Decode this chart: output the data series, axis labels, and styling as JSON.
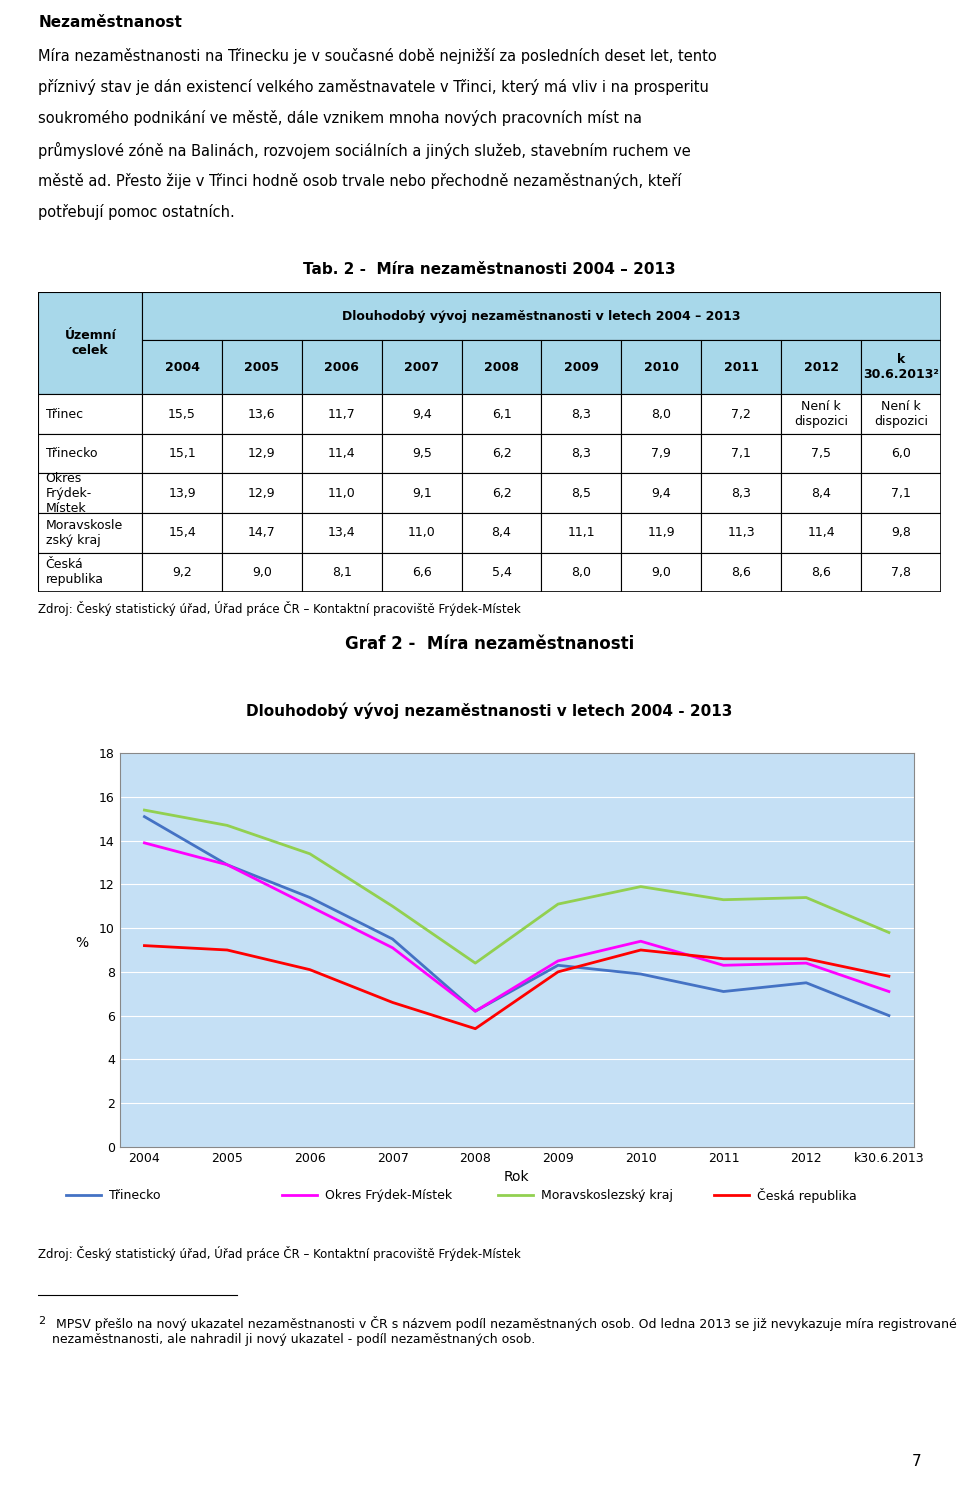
{
  "title_bold": "Nezaměstnanost",
  "paragraph": "Míra nezaměstnanosti na Třinecku je v současné době nejnižší za posledních deset let, tento příznivý stav je dán existencí velkého zaměstnavatele v Třinci, který má vliv i na prosperitu soukromého podnikání ve městě, dále vznikem mnoha nových pracovních míst na průmyslové zóně na Balinách, rozvojem sociálních a jiných služeb, stavebním ruchem ve městě ad. Přesto žije v Třinci hodně osob trvale nebo přechodně nezaměstnaných, kteří potřebují pomoc ostatních.",
  "tab_title": "Tab. 2 -  Míra nezaměstnanosti 2004 – 2013",
  "col_years": [
    "2004",
    "2005",
    "2006",
    "2007",
    "2008",
    "2009",
    "2010",
    "2011",
    "2012",
    "k\n30.6.2013²"
  ],
  "rows": [
    {
      "label": "Třinec",
      "values": [
        "15,5",
        "13,6",
        "11,7",
        "9,4",
        "6,1",
        "8,3",
        "8,0",
        "7,2",
        "Není k\ndispozici",
        "Není k\ndispozici"
      ]
    },
    {
      "label": "Třinecko",
      "values": [
        "15,1",
        "12,9",
        "11,4",
        "9,5",
        "6,2",
        "8,3",
        "7,9",
        "7,1",
        "7,5",
        "6,0"
      ]
    },
    {
      "label": "Okres\nFrýdek-\nMístek",
      "values": [
        "13,9",
        "12,9",
        "11,0",
        "9,1",
        "6,2",
        "8,5",
        "9,4",
        "8,3",
        "8,4",
        "7,1"
      ]
    },
    {
      "label": "Moravskosle\nzský kraj",
      "values": [
        "15,4",
        "14,7",
        "13,4",
        "11,0",
        "8,4",
        "11,1",
        "11,9",
        "11,3",
        "11,4",
        "9,8"
      ]
    },
    {
      "label": "Česká\nrepublika",
      "values": [
        "9,2",
        "9,0",
        "8,1",
        "6,6",
        "5,4",
        "8,0",
        "9,0",
        "8,6",
        "8,6",
        "7,8"
      ]
    }
  ],
  "table_source": "Zdroj: Český statistický úřad, Úřad práce ČR – Kontaktní pracoviště Frýdek-Místek",
  "graph_title": "Graf 2 -  Míra nezaměstnanosti",
  "graph_subtitle": "Dlouhodobý vývoj nezaměstnanosti v letech 2004 - 2013",
  "graph_xlabel": "Rok",
  "graph_ylabel": "%",
  "graph_ylim": [
    0,
    18
  ],
  "graph_yticks": [
    0,
    2,
    4,
    6,
    8,
    10,
    12,
    14,
    16,
    18
  ],
  "graph_xtick_labels": [
    "2004",
    "2005",
    "2006",
    "2007",
    "2008",
    "2009",
    "2010",
    "2011",
    "2012",
    "k30.6.2013"
  ],
  "series": [
    {
      "label": "Třinecko",
      "color": "#4472C4",
      "values": [
        15.1,
        12.9,
        11.4,
        9.5,
        6.2,
        8.3,
        7.9,
        7.1,
        7.5,
        6.0
      ]
    },
    {
      "label": "Okres Frýdek-Místek",
      "color": "#FF00FF",
      "values": [
        13.9,
        12.9,
        11.0,
        9.1,
        6.2,
        8.5,
        9.4,
        8.3,
        8.4,
        7.1
      ]
    },
    {
      "label": "Moravskoslezský kraj",
      "color": "#92D050",
      "values": [
        15.4,
        14.7,
        13.4,
        11.0,
        8.4,
        11.1,
        11.9,
        11.3,
        11.4,
        9.8
      ]
    },
    {
      "label": "Česká republika",
      "color": "#FF0000",
      "values": [
        9.2,
        9.0,
        8.1,
        6.6,
        5.4,
        8.0,
        9.0,
        8.6,
        8.6,
        7.8
      ]
    }
  ],
  "graph_source": "Zdroj: Český statistický úřad, Úřad práce ČR – Kontaktní pracoviště Frýdek-Místek",
  "footnote_super": "2",
  "footnote_text": " MPSV přešlo na nový ukazatel nezaměstnanosti v ČR s názvem podíl nezaměstnaných osob. Od ledna 2013 se již nevykazuje míra registrované nezaměstnanosti, ale nahradil ji nový ukazatel - podíl nezaměstnaných osob.",
  "page_number": "7",
  "graph_bg_outer": "#C5E0F5",
  "graph_bg_inner": "#D9EDF7",
  "table_header_bg": "#A8D8EA",
  "table_border_color": "#000000",
  "header2_text": "Dlouhodobý vývoj nezaměstnanosti v letech 2004 – 2013"
}
